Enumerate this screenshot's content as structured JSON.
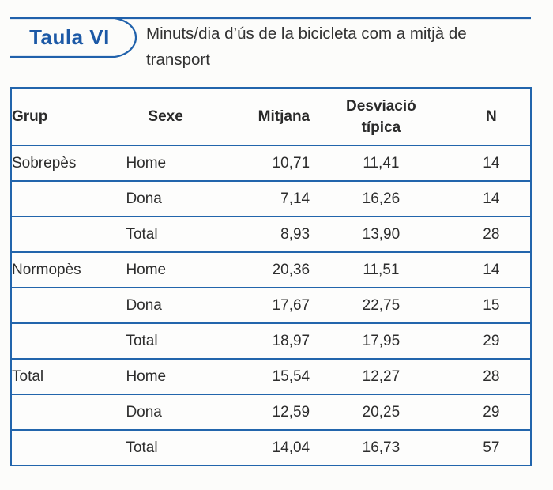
{
  "badge": {
    "label": "Taula VI"
  },
  "title": "Minuts/dia d’ús de la bicicleta com a mitjà de transport",
  "table": {
    "columns": [
      "Grup",
      "Sexe",
      "Mitjana",
      "Desviació\ntípica",
      "N"
    ],
    "rows": [
      {
        "grup": "Sobrepès",
        "sexe": "Home",
        "mitjana": "10,71",
        "desviacio": "11,41",
        "n": "14"
      },
      {
        "grup": "",
        "sexe": "Dona",
        "mitjana": "7,14",
        "desviacio": "16,26",
        "n": "14"
      },
      {
        "grup": "",
        "sexe": "Total",
        "mitjana": "8,93",
        "desviacio": "13,90",
        "n": "28"
      },
      {
        "grup": "Normopès",
        "sexe": "Home",
        "mitjana": "20,36",
        "desviacio": "11,51",
        "n": "14"
      },
      {
        "grup": "",
        "sexe": "Dona",
        "mitjana": "17,67",
        "desviacio": "22,75",
        "n": "15"
      },
      {
        "grup": "",
        "sexe": "Total",
        "mitjana": "18,97",
        "desviacio": "17,95",
        "n": "29"
      },
      {
        "grup": "Total",
        "sexe": "Home",
        "mitjana": "15,54",
        "desviacio": "12,27",
        "n": "28"
      },
      {
        "grup": "",
        "sexe": "Dona",
        "mitjana": "12,59",
        "desviacio": "20,25",
        "n": "29"
      },
      {
        "grup": "",
        "sexe": "Total",
        "mitjana": "14,04",
        "desviacio": "16,73",
        "n": "57"
      }
    ]
  },
  "colors": {
    "accent_blue": "#2061ab",
    "badge_text_blue": "#1c59a6",
    "body_text": "#2d2d2d",
    "background": "#fcfcfa"
  }
}
